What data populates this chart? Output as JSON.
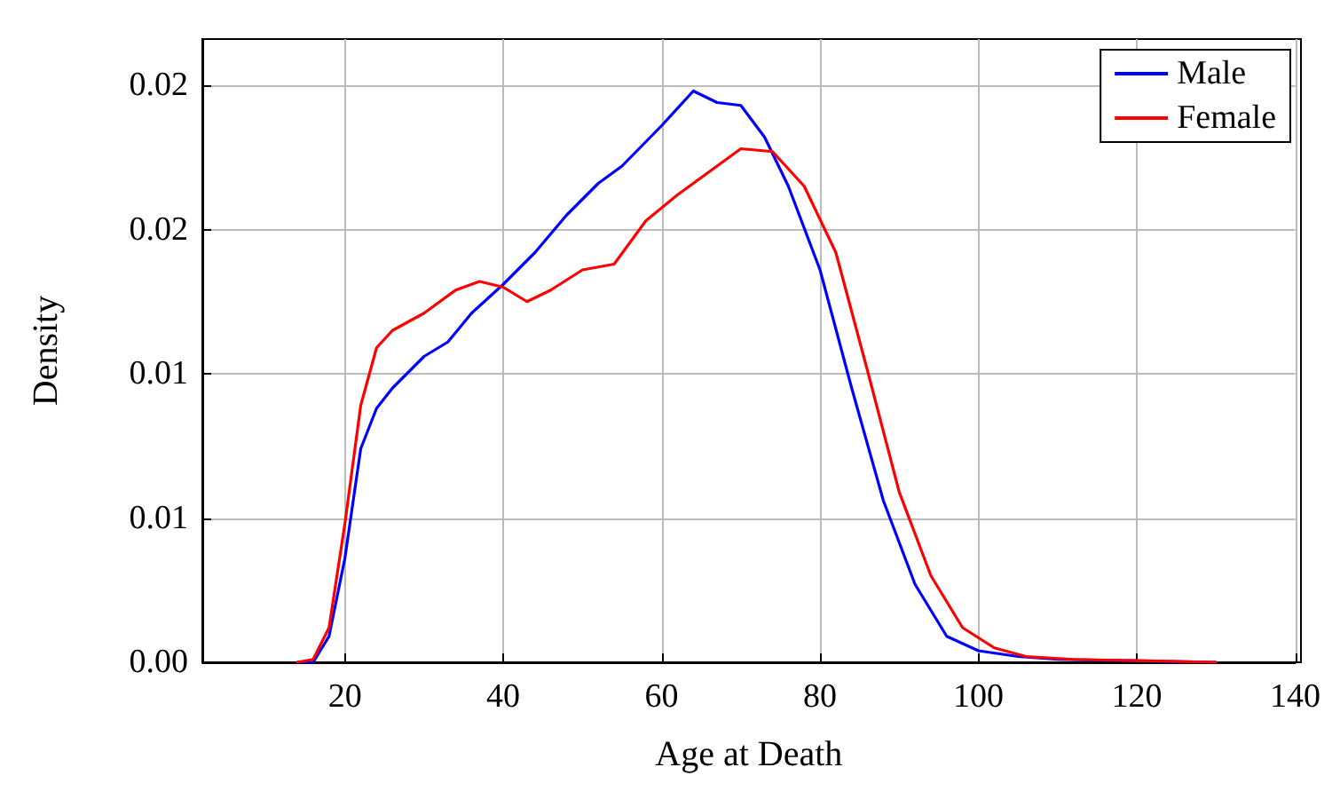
{
  "chart_data": {
    "type": "line",
    "xlabel": "Age at Death",
    "ylabel": "Density",
    "xlim": [
      2,
      140
    ],
    "xticks": [
      20,
      40,
      60,
      80,
      100,
      120,
      140
    ],
    "ylim": [
      0,
      0.0216
    ],
    "yticks": [
      {
        "value": 0,
        "label": "0.00"
      },
      {
        "value": 0.005,
        "label": "0.01"
      },
      {
        "value": 0.01,
        "label": "0.01"
      },
      {
        "value": 0.015,
        "label": "0.02"
      },
      {
        "value": 0.02,
        "label": "0.02"
      }
    ],
    "grid": true,
    "legend": "top right",
    "marker": "none",
    "line_style": "solid",
    "series": [
      {
        "name": "Male",
        "color": "#0000ff",
        "x": [
          14,
          16,
          18,
          20,
          22,
          24,
          26,
          30,
          33,
          36,
          40,
          44,
          48,
          52,
          55,
          60,
          64,
          67,
          70,
          73,
          76,
          80,
          84,
          88,
          92,
          96,
          100,
          105,
          110,
          130
        ],
        "values": [
          0,
          0,
          0.0009,
          0.0036,
          0.0074,
          0.0088,
          0.0095,
          0.0106,
          0.0111,
          0.0121,
          0.0131,
          0.0142,
          0.0155,
          0.0166,
          0.0172,
          0.0186,
          0.0198,
          0.0194,
          0.0193,
          0.0182,
          0.0165,
          0.0136,
          0.0095,
          0.0056,
          0.0027,
          0.0009,
          0.0004,
          0.0002,
          0.0001,
          0
        ]
      },
      {
        "name": "Female",
        "color": "#ff0000",
        "x": [
          14,
          16,
          18,
          20,
          22,
          24,
          26,
          30,
          34,
          37,
          40,
          43,
          46,
          50,
          54,
          58,
          62,
          66,
          70,
          74,
          78,
          82,
          86,
          90,
          94,
          98,
          102,
          106,
          112,
          130
        ],
        "values": [
          0,
          0.0001,
          0.0012,
          0.0048,
          0.0089,
          0.0109,
          0.0115,
          0.0121,
          0.0129,
          0.0132,
          0.013,
          0.0125,
          0.0129,
          0.0136,
          0.0138,
          0.0153,
          0.0162,
          0.017,
          0.0178,
          0.0177,
          0.0165,
          0.0142,
          0.0101,
          0.0059,
          0.003,
          0.0012,
          0.0005,
          0.0002,
          0.0001,
          0
        ]
      }
    ]
  }
}
